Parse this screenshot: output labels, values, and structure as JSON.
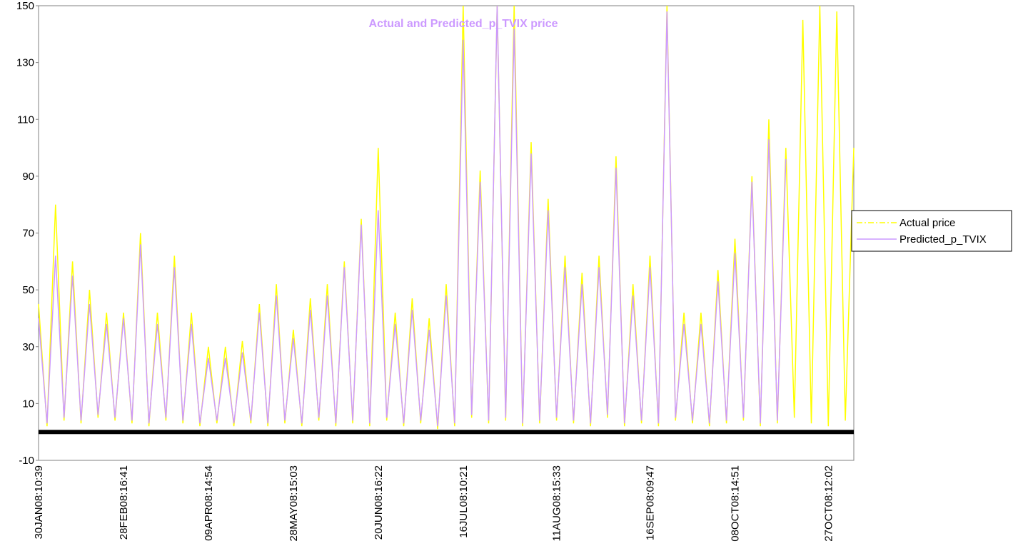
{
  "chart_data": {
    "type": "line",
    "title": "Actual and Predicted_p_TVIX price",
    "categories": [
      "30JAN08:10:39",
      null,
      null,
      null,
      null,
      null,
      null,
      null,
      null,
      null,
      "28FEB08:16:41",
      null,
      null,
      null,
      null,
      null,
      null,
      null,
      null,
      null,
      "09APR08:14:54",
      null,
      null,
      null,
      null,
      null,
      null,
      null,
      null,
      null,
      "28MAY08:15:03",
      null,
      null,
      null,
      null,
      null,
      null,
      null,
      null,
      null,
      "20JUN08:16:22",
      null,
      null,
      null,
      null,
      null,
      null,
      null,
      null,
      null,
      "16JUL08:10:21",
      null,
      null,
      null,
      null,
      null,
      null,
      null,
      null,
      null,
      null,
      "11AUG08:15:33",
      null,
      null,
      null,
      null,
      null,
      null,
      null,
      null,
      null,
      null,
      "16SEP08:09:47",
      null,
      null,
      null,
      null,
      null,
      null,
      null,
      null,
      null,
      "08OCT08:14:51",
      null,
      null,
      null,
      null,
      null,
      null,
      null,
      null,
      null,
      null,
      "27OCT08:12:02",
      null,
      null,
      null
    ],
    "series": [
      {
        "name": "Actual price",
        "color": "#ffff00",
        "values": [
          45,
          2,
          80,
          4,
          60,
          3,
          50,
          5,
          42,
          4,
          42,
          3,
          70,
          2,
          42,
          4,
          62,
          3,
          42,
          2,
          30,
          3,
          30,
          2,
          32,
          3,
          45,
          2,
          52,
          3,
          36,
          2,
          47,
          4,
          52,
          2,
          60,
          3,
          75,
          2,
          100,
          4,
          42,
          2,
          47,
          3,
          40,
          1,
          52,
          2,
          150,
          5,
          92,
          3,
          150,
          4,
          150,
          2,
          102,
          3,
          82,
          4,
          62,
          3,
          56,
          2,
          62,
          5,
          97,
          2,
          52,
          3,
          62,
          2,
          150,
          4,
          42,
          3,
          42,
          2,
          57,
          3,
          68,
          4,
          90,
          2,
          110,
          3,
          100,
          5,
          145,
          3,
          150,
          2,
          148,
          4,
          100
        ]
      },
      {
        "name": "Predicted_p_TVIX",
        "color": "#cc99ff",
        "values": [
          40,
          3,
          62,
          5,
          55,
          4,
          45,
          6,
          38,
          5,
          40,
          4,
          66,
          3,
          38,
          5,
          58,
          4,
          38,
          3,
          26,
          4,
          26,
          3,
          28,
          4,
          42,
          3,
          48,
          4,
          33,
          3,
          43,
          5,
          48,
          3,
          58,
          4,
          73,
          3,
          78,
          5,
          38,
          3,
          43,
          4,
          36,
          2,
          48,
          3,
          138,
          6,
          88,
          4,
          150,
          5,
          142,
          3,
          98,
          4,
          78,
          5,
          58,
          4,
          52,
          3,
          58,
          6,
          93,
          3,
          48,
          4,
          58,
          3,
          148,
          5,
          38,
          4,
          38,
          3,
          53,
          4,
          63,
          5,
          88,
          3,
          103,
          4,
          96,
          null,
          null,
          null,
          null,
          null,
          null,
          null,
          null
        ]
      }
    ],
    "ylim": [
      -10,
      150
    ],
    "yticks": [
      -10,
      10,
      30,
      50,
      70,
      90,
      110,
      130,
      150
    ],
    "legend": "right"
  }
}
